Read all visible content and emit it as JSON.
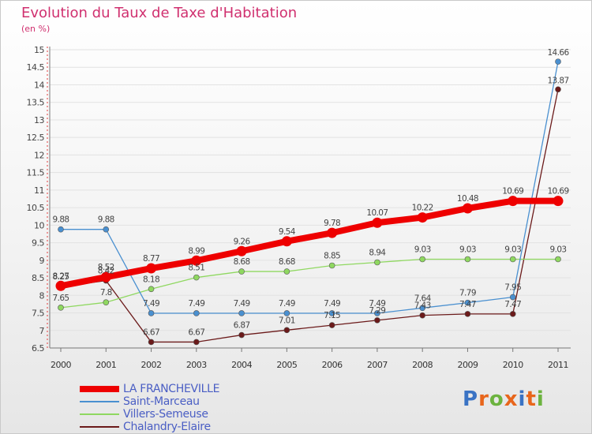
{
  "header": {
    "title": "Evolution du Taux de Taxe d'Habitation",
    "unit": "(en %)"
  },
  "logo": {
    "chars": [
      {
        "c": "P",
        "color": "#3a73c4"
      },
      {
        "c": "r",
        "color": "#e8661c"
      },
      {
        "c": "o",
        "color": "#6cb33f"
      },
      {
        "c": "x",
        "color": "#e8661c"
      },
      {
        "c": "i",
        "color": "#3a73c4"
      },
      {
        "c": "t",
        "color": "#e8661c"
      },
      {
        "c": "i",
        "color": "#6cb33f"
      }
    ]
  },
  "chart_data": {
    "type": "line",
    "x": [
      "2000",
      "2001",
      "2002",
      "2003",
      "2004",
      "2005",
      "2006",
      "2007",
      "2008",
      "2009",
      "2010",
      "2011"
    ],
    "ylim": [
      6.5,
      15
    ],
    "y_ticks": [
      "6.5",
      "7",
      "7.5",
      "8",
      "8.5",
      "9",
      "9.5",
      "10",
      "10.5",
      "11",
      "11.5",
      "12",
      "12.5",
      "13",
      "13.5",
      "14",
      "14.5",
      "15"
    ],
    "legend_position": "bottom-left",
    "series": [
      {
        "name": "LA FRANCHEVILLE",
        "color": "#ee0000",
        "values": [
          8.27,
          8.52,
          8.77,
          8.99,
          9.26,
          9.54,
          9.78,
          10.07,
          10.22,
          10.48,
          10.69,
          10.69
        ],
        "labels": [
          "8.27",
          "8.52",
          "8.77",
          "8.99",
          "9.26",
          "9.54",
          "9.78",
          "10.07",
          "10.22",
          "10.48",
          "10.69",
          "10.69"
        ]
      },
      {
        "name": "Saint-Marceau",
        "color": "#4a90d0",
        "values": [
          9.88,
          9.88,
          7.49,
          7.49,
          7.49,
          7.49,
          7.49,
          7.49,
          7.64,
          7.79,
          7.95,
          14.66
        ],
        "labels": [
          "9.88",
          "9.88",
          "7.49",
          "7.49",
          "7.49",
          "7.49",
          "7.49",
          "7.49",
          "7.64",
          "7.79",
          "7.95",
          "14.66"
        ]
      },
      {
        "name": "Villers-Semeuse",
        "color": "#8fd860",
        "values": [
          7.65,
          7.8,
          8.18,
          8.51,
          8.68,
          8.68,
          8.85,
          8.94,
          9.03,
          9.03,
          9.03,
          9.03
        ],
        "labels": [
          "7.65",
          "7.8",
          "8.18",
          "8.51",
          "8.68",
          "8.68",
          "8.85",
          "8.94",
          "9.03",
          "9.03",
          "9.03",
          "9.03"
        ]
      },
      {
        "name": "Chalandry-Elaire",
        "color": "#6b1a1a",
        "values": [
          8.25,
          8.42,
          6.67,
          6.67,
          6.87,
          7.01,
          7.15,
          7.29,
          7.43,
          7.47,
          7.47,
          13.87
        ],
        "labels": [
          "8.25",
          "8.42",
          "6.67",
          "6.67",
          "6.87",
          "7.01",
          "7.15",
          "7.29",
          "7.43",
          "7.47",
          "7.47",
          "13.87"
        ]
      }
    ]
  }
}
